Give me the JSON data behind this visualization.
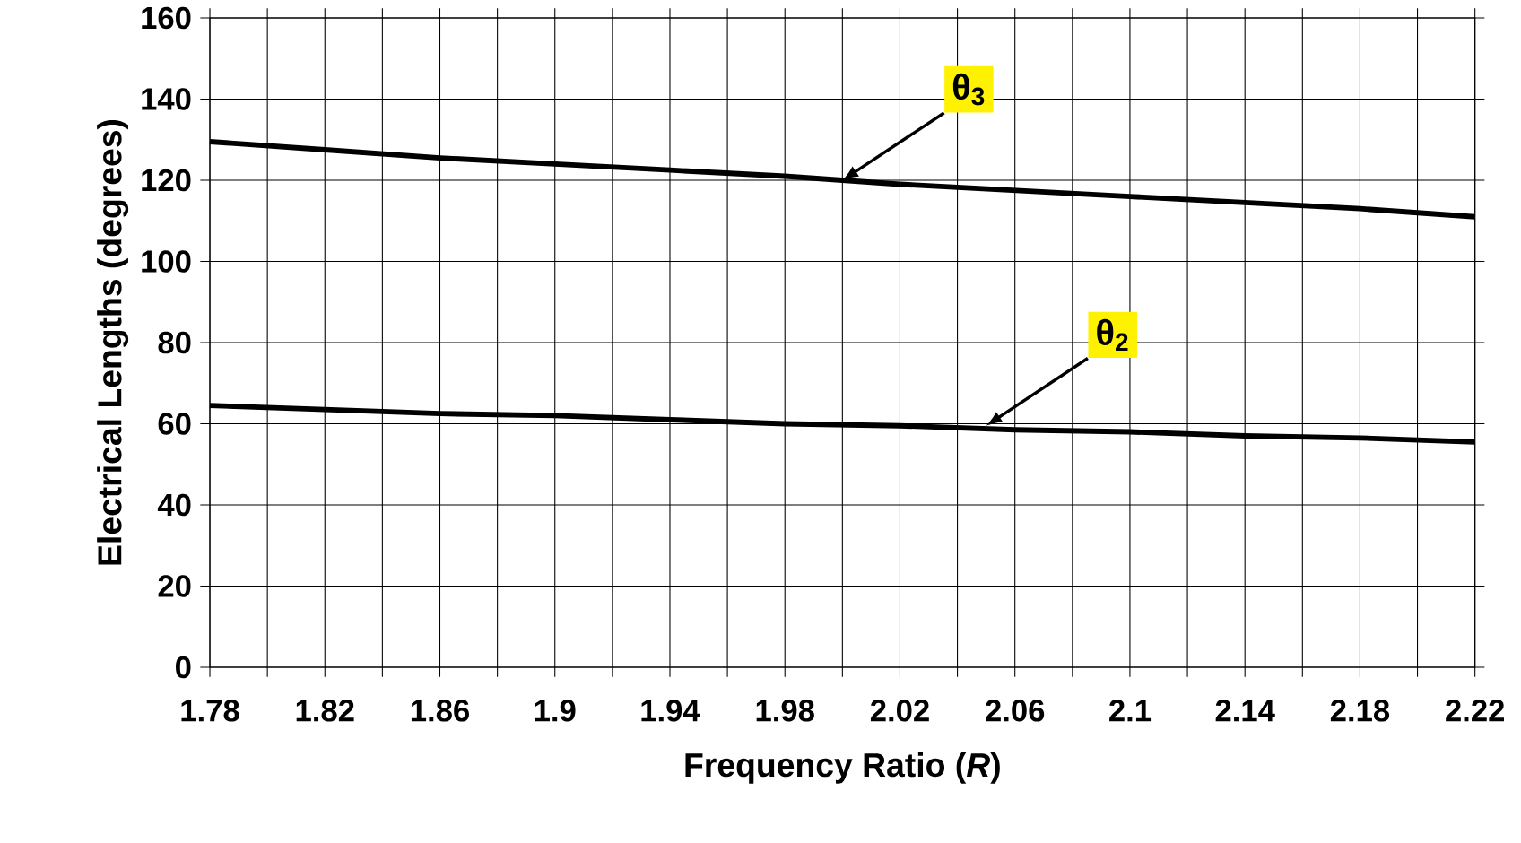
{
  "chart_data": {
    "type": "line",
    "xlabel": "Frequency Ratio (*R*)",
    "ylabel": "Electrical Lengths (degrees)",
    "x": [
      1.78,
      1.82,
      1.86,
      1.9,
      1.94,
      1.98,
      2.02,
      2.06,
      2.1,
      2.14,
      2.18,
      2.22
    ],
    "series": [
      {
        "color": "#000000",
        "values": [
          129.5,
          127.5,
          125.5,
          124,
          122.5,
          121,
          119,
          117.5,
          116,
          114.5,
          113,
          111
        ]
      },
      {
        "color": "#000000",
        "values": [
          64.5,
          63.5,
          62.5,
          62,
          61,
          60,
          59.5,
          58.5,
          58,
          57,
          56.5,
          55.5
        ]
      }
    ],
    "xlim": [
      1.78,
      2.22
    ],
    "ylim": [
      0,
      160
    ],
    "xticks": [
      1.78,
      {
        "value": 1.8,
        "label": null
      },
      1.82,
      {
        "value": 1.84,
        "label": null
      },
      1.86,
      {
        "value": 1.88,
        "label": null
      },
      1.9,
      {
        "value": 1.92,
        "label": null
      },
      1.94,
      {
        "value": 1.96,
        "label": null
      },
      1.98,
      {
        "value": 2.0,
        "label": null
      },
      2.02,
      {
        "value": 2.04,
        "label": null
      },
      2.06,
      {
        "value": 2.08,
        "label": null
      },
      2.1,
      {
        "value": 2.12,
        "label": null
      },
      2.14,
      {
        "value": 2.16,
        "label": null
      },
      2.18,
      {
        "value": 2.2,
        "label": null
      },
      2.22
    ],
    "yticks": [
      0,
      20,
      40,
      60,
      80,
      100,
      120,
      140,
      160
    ],
    "grid": true,
    "marker": "none",
    "line_style": "solid",
    "annotations": [
      {
        "text": "θ$_{3}$",
        "x": 2.0,
        "y": 120
      },
      {
        "text": "θ$_{2}$",
        "x": 2.05,
        "y": 59.5
      }
    ]
  }
}
